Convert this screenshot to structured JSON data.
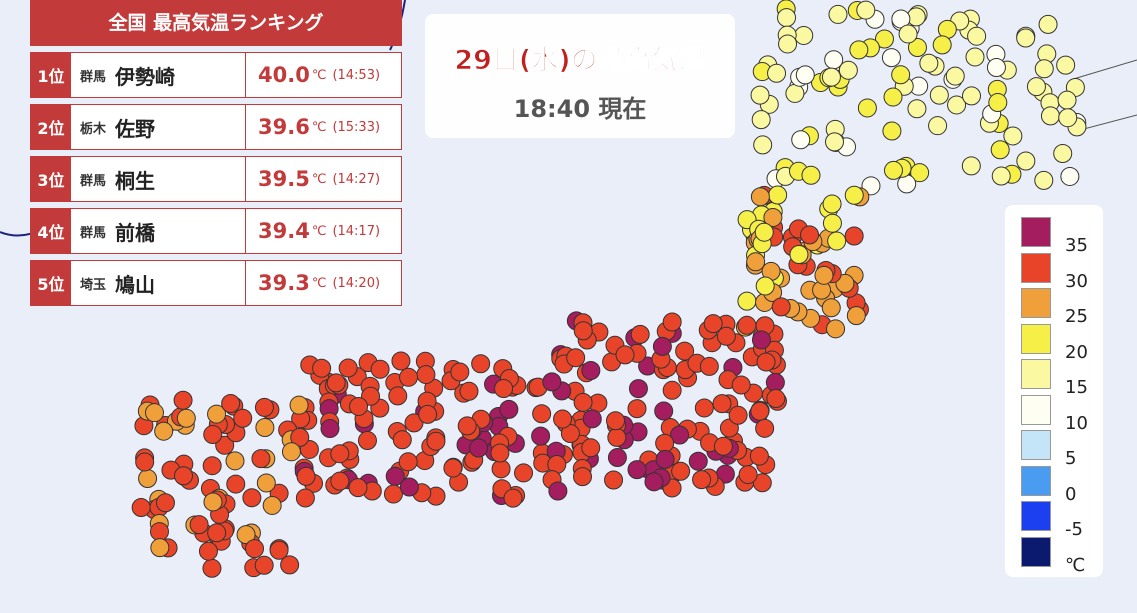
{
  "header": {
    "title": "29日(水)の最高気温",
    "time": "18:40 現在"
  },
  "ranking": {
    "title": "全国 最高気温ランキング",
    "rows": [
      {
        "rank": "1位",
        "pref": "群馬",
        "city": "伊勢崎",
        "temp": "40.0",
        "unit": "℃",
        "time": "(14:53)"
      },
      {
        "rank": "2位",
        "pref": "栃木",
        "city": "佐野",
        "temp": "39.6",
        "unit": "℃",
        "time": "(15:33)"
      },
      {
        "rank": "3位",
        "pref": "群馬",
        "city": "桐生",
        "temp": "39.5",
        "unit": "℃",
        "time": "(14:27)"
      },
      {
        "rank": "4位",
        "pref": "群馬",
        "city": "前橋",
        "temp": "39.4",
        "unit": "℃",
        "time": "(14:17)"
      },
      {
        "rank": "5位",
        "pref": "埼玉",
        "city": "鳩山",
        "temp": "39.3",
        "unit": "℃",
        "time": "(14:20)"
      }
    ]
  },
  "legend": {
    "labels": [
      "35",
      "30",
      "25",
      "20",
      "15",
      "10",
      "5",
      "0",
      "-5",
      "℃"
    ],
    "colors": [
      "#a31d5f",
      "#e8442a",
      "#f0a03a",
      "#f5ef48",
      "#fbf8a2",
      "#fefef2",
      "#c3e5f7",
      "#4a9cf0",
      "#1c3ff0",
      "#0b1a6e"
    ]
  }
}
